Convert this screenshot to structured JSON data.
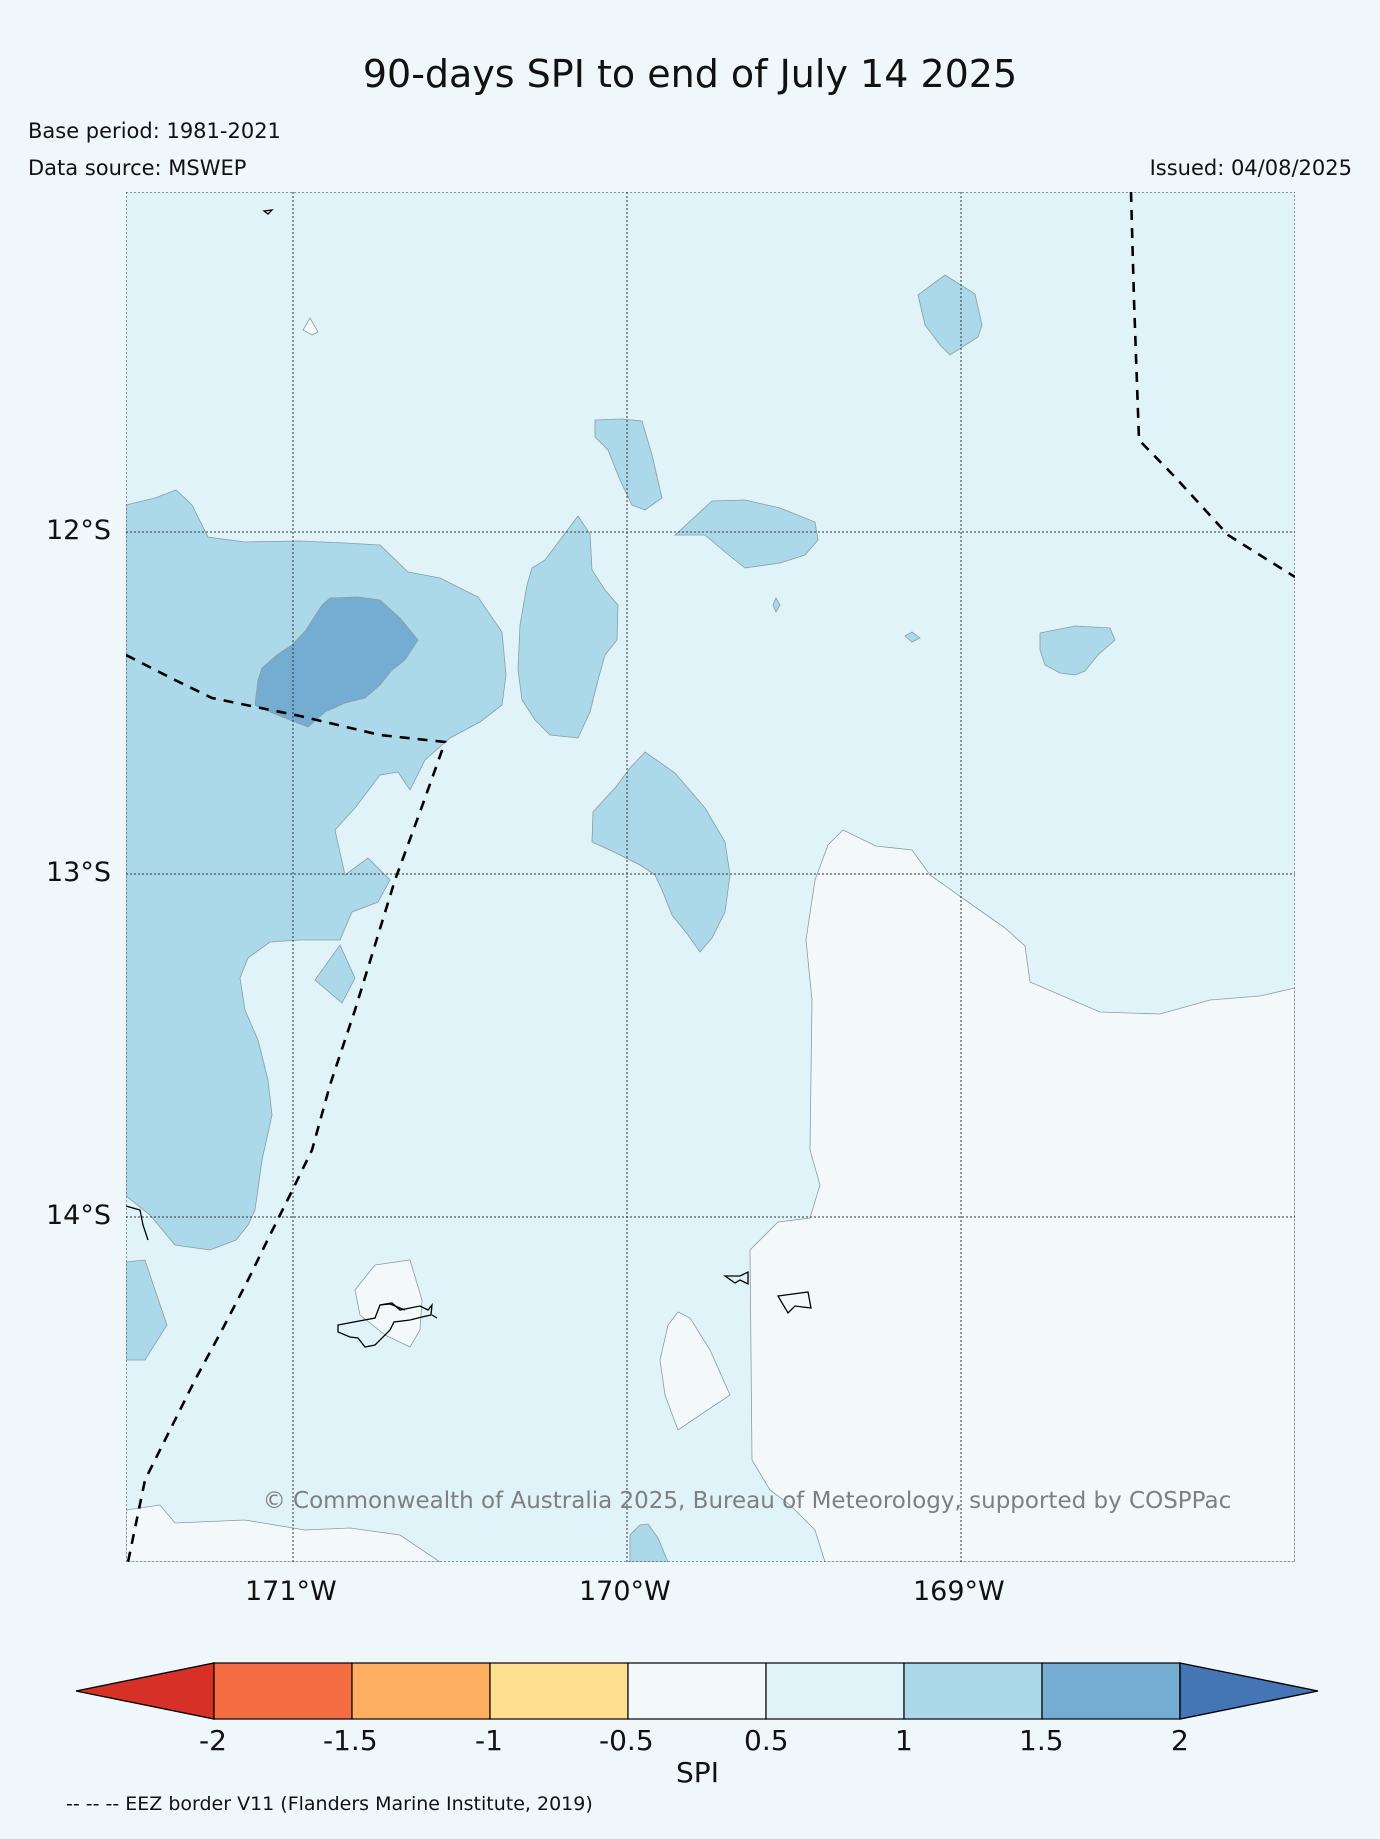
{
  "title": "90-days SPI to end of July 14 2025",
  "base_period": "Base period: 1981-2021",
  "data_source": "Data source: MSWEP",
  "issued": "Issued: 04/08/2025",
  "copyright": "© Commonwealth of Australia 2025, Bureau of Meteorology, supported by COSPPac",
  "latitude_labels": [
    "12°S",
    "13°S",
    "14°S"
  ],
  "longitude_labels": [
    "171°W",
    "170°W",
    "169°W"
  ],
  "colorbar": {
    "title": "SPI",
    "ticks": [
      "-2",
      "-1.5",
      "-1",
      "-0.5",
      "0.5",
      "1",
      "1.5",
      "2"
    ],
    "colors": [
      "#d73027",
      "#f46d43",
      "#fdae61",
      "#fee090",
      "#f3f9fb",
      "#e0f3f8",
      "#abd9e9",
      "#74add1",
      "#4575b4"
    ]
  },
  "legend_note": "-- -- -- EEZ border V11 (Flanders Marine Institute, 2019)",
  "colors": {
    "background": "#eff7fa",
    "spi_0_5_to_1": "#e0f3f8",
    "spi_1_to_1_5": "#abd9e9",
    "spi_1_5_to_2": "#74add1",
    "spi_near_normal": "#f3f9fb"
  }
}
